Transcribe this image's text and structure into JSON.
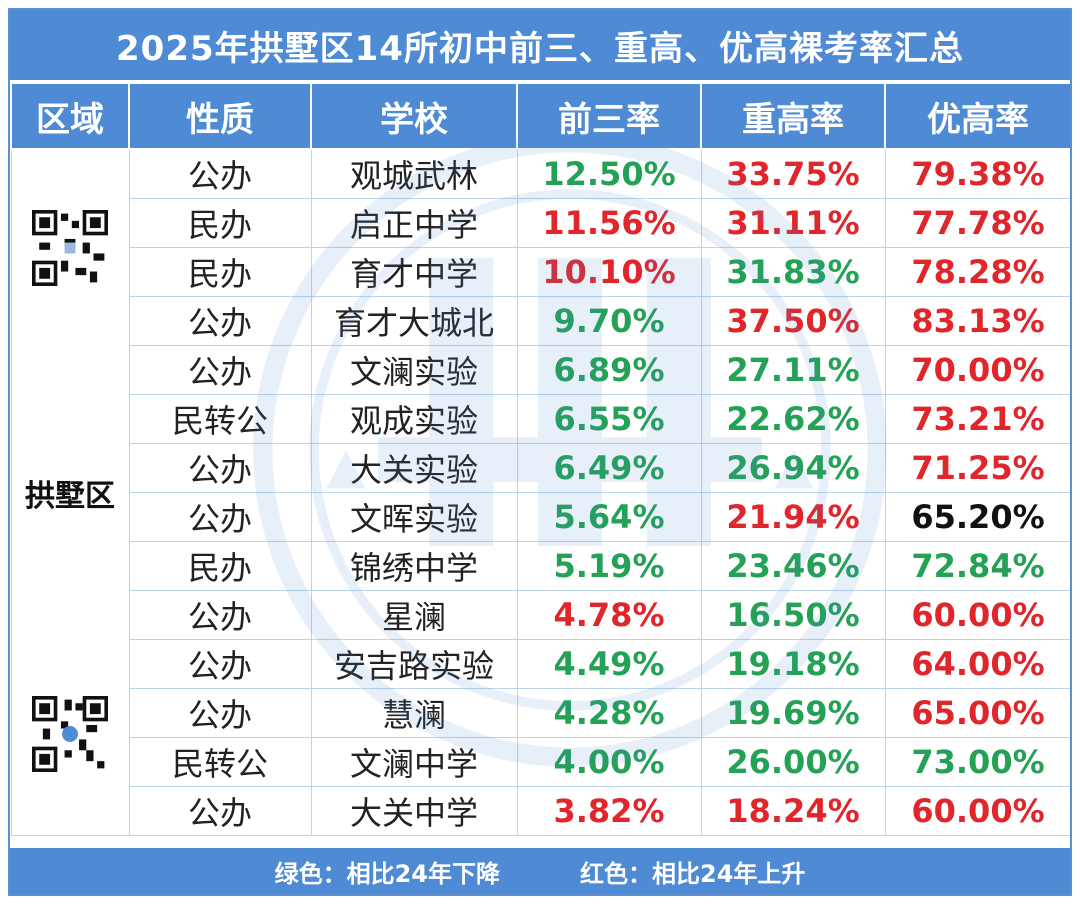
{
  "title": "2025年拱墅区14所初中前三、重高、优高裸考率汇总",
  "headers": [
    "区域",
    "性质",
    "学校",
    "前三率",
    "重高率",
    "优高率"
  ],
  "region": "拱墅区",
  "colors": {
    "up": "#e0262b",
    "down": "#23a155",
    "neutral": "#111111",
    "header": "#4f8ad4"
  },
  "rows": [
    {
      "type": "公办",
      "school": "观城武林",
      "top3": "12.50%",
      "top3_color": "#23a155",
      "key": "33.75%",
      "key_color": "#e0262b",
      "good": "79.38%",
      "good_color": "#e0262b"
    },
    {
      "type": "民办",
      "school": "启正中学",
      "top3": "11.56%",
      "top3_color": "#e0262b",
      "key": "31.11%",
      "key_color": "#e0262b",
      "good": "77.78%",
      "good_color": "#e0262b"
    },
    {
      "type": "民办",
      "school": "育才中学",
      "top3": "10.10%",
      "top3_color": "#e0262b",
      "key": "31.83%",
      "key_color": "#23a155",
      "good": "78.28%",
      "good_color": "#e0262b"
    },
    {
      "type": "公办",
      "school": "育才大城北",
      "top3": "9.70%",
      "top3_color": "#23a155",
      "key": "37.50%",
      "key_color": "#e0262b",
      "good": "83.13%",
      "good_color": "#e0262b"
    },
    {
      "type": "公办",
      "school": "文澜实验",
      "top3": "6.89%",
      "top3_color": "#23a155",
      "key": "27.11%",
      "key_color": "#23a155",
      "good": "70.00%",
      "good_color": "#e0262b"
    },
    {
      "type": "民转公",
      "school": "观成实验",
      "top3": "6.55%",
      "top3_color": "#23a155",
      "key": "22.62%",
      "key_color": "#23a155",
      "good": "73.21%",
      "good_color": "#e0262b"
    },
    {
      "type": "公办",
      "school": "大关实验",
      "top3": "6.49%",
      "top3_color": "#23a155",
      "key": "26.94%",
      "key_color": "#23a155",
      "good": "71.25%",
      "good_color": "#e0262b"
    },
    {
      "type": "公办",
      "school": "文晖实验",
      "top3": "5.64%",
      "top3_color": "#23a155",
      "key": "21.94%",
      "key_color": "#e0262b",
      "good": "65.20%",
      "good_color": "#111111"
    },
    {
      "type": "民办",
      "school": "锦绣中学",
      "top3": "5.19%",
      "top3_color": "#23a155",
      "key": "23.46%",
      "key_color": "#23a155",
      "good": "72.84%",
      "good_color": "#23a155"
    },
    {
      "type": "公办",
      "school": "星澜",
      "top3": "4.78%",
      "top3_color": "#e0262b",
      "key": "16.50%",
      "key_color": "#23a155",
      "good": "60.00%",
      "good_color": "#e0262b"
    },
    {
      "type": "公办",
      "school": "安吉路实验",
      "top3": "4.49%",
      "top3_color": "#23a155",
      "key": "19.18%",
      "key_color": "#23a155",
      "good": "64.00%",
      "good_color": "#e0262b"
    },
    {
      "type": "公办",
      "school": "慧澜",
      "top3": "4.28%",
      "top3_color": "#23a155",
      "key": "19.69%",
      "key_color": "#23a155",
      "good": "65.00%",
      "good_color": "#e0262b"
    },
    {
      "type": "民转公",
      "school": "文澜中学",
      "top3": "4.00%",
      "top3_color": "#23a155",
      "key": "26.00%",
      "key_color": "#23a155",
      "good": "73.00%",
      "good_color": "#23a155"
    },
    {
      "type": "公办",
      "school": "大关中学",
      "top3": "3.82%",
      "top3_color": "#e0262b",
      "key": "18.24%",
      "key_color": "#e0262b",
      "good": "60.00%",
      "good_color": "#e0262b"
    }
  ],
  "legend": {
    "green": "绿色：相比24年下降",
    "red": "红色：相比24年上升"
  }
}
